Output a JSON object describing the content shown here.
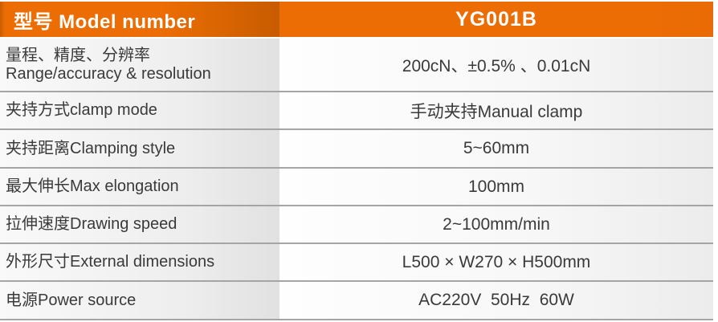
{
  "table": {
    "header": {
      "label": "型号 Model number",
      "model": "YG001B"
    },
    "rows": [
      {
        "label": "量程、精度、分辨率\nRange/accuracy & resolution",
        "value": "200cN、±0.5% 、0.01cN"
      },
      {
        "label": "夹持方式clamp mode",
        "value": "手动夹持Manual clamp"
      },
      {
        "label": "夹持距离Clamping style",
        "value": "5~60mm"
      },
      {
        "label": "最大伸长Max elongation",
        "value": "100mm"
      },
      {
        "label": "拉伸速度Drawing speed",
        "value": "2~100mm/min"
      },
      {
        "label": "外形尺寸External dimensions",
        "value": "L500 × W270 × H500mm"
      },
      {
        "label": "电源Power source",
        "value": "AC220V  50Hz  60W"
      }
    ]
  },
  "colors": {
    "accent_orange": "#ec6d03",
    "accent_orange_dark": "#c85c00",
    "divider_gray": "#a5a5a5",
    "header_text": "#ffffff",
    "body_text": "#3a3a3a",
    "label_column_bg": "#eeeeee",
    "value_column_bg": "#f8f8f8"
  }
}
